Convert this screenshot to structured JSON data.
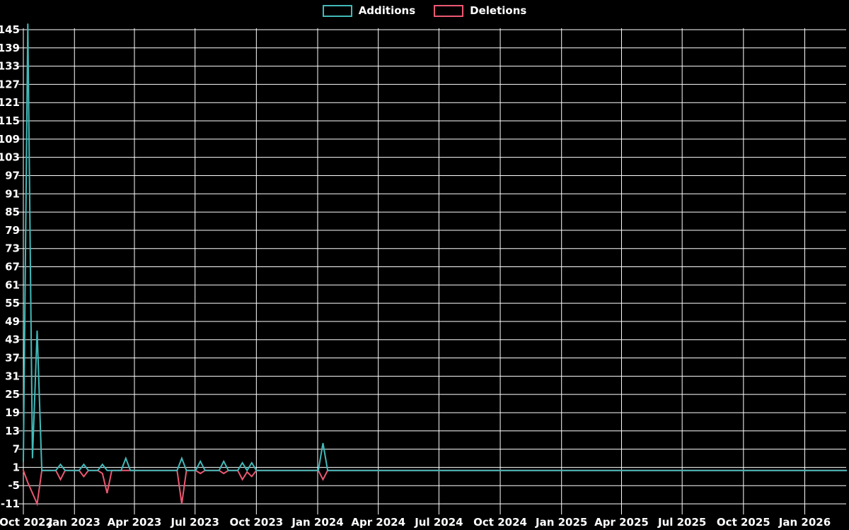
{
  "legend": {
    "items": [
      {
        "label": "Additions"
      },
      {
        "label": "Deletions"
      }
    ]
  },
  "chart_data": {
    "type": "line",
    "title": "",
    "legend_position": "top-center",
    "background_color": "#000000",
    "grid_color": "#ffffff",
    "text_color": "#ffffff",
    "grid": true,
    "x_axis": {
      "ticks": [
        {
          "label": "Oct 2022",
          "date": "2022-10-01"
        },
        {
          "label": "Jan 2023",
          "date": "2023-01-01"
        },
        {
          "label": "Apr 2023",
          "date": "2023-04-01"
        },
        {
          "label": "Jul 2023",
          "date": "2023-07-01"
        },
        {
          "label": "Oct 2023",
          "date": "2023-10-01"
        },
        {
          "label": "Jan 2024",
          "date": "2024-01-01"
        },
        {
          "label": "Apr 2024",
          "date": "2024-04-01"
        },
        {
          "label": "Jul 2024",
          "date": "2024-07-01"
        },
        {
          "label": "Oct 2024",
          "date": "2024-10-01"
        },
        {
          "label": "Jan 2025",
          "date": "2025-01-01"
        },
        {
          "label": "Apr 2025",
          "date": "2025-04-01"
        },
        {
          "label": "Jul 2025",
          "date": "2025-07-01"
        },
        {
          "label": "Oct 2025",
          "date": "2025-10-01"
        },
        {
          "label": "Jan 2026",
          "date": "2026-01-01"
        }
      ]
    },
    "y_axis": {
      "min": -11,
      "max": 145,
      "step": 6
    },
    "series": [
      {
        "name": "Additions",
        "color": "#42b9b9",
        "points": [
          [
            "2022-10-16",
            3
          ],
          [
            "2022-10-23",
            147
          ],
          [
            "2022-10-30",
            4
          ],
          [
            "2022-11-06",
            46
          ],
          [
            "2022-11-13",
            0
          ],
          [
            "2022-12-04",
            0
          ],
          [
            "2022-12-11",
            2
          ],
          [
            "2022-12-18",
            0
          ],
          [
            "2023-01-08",
            0
          ],
          [
            "2023-01-15",
            2
          ],
          [
            "2023-01-22",
            0
          ],
          [
            "2023-02-05",
            0
          ],
          [
            "2023-02-12",
            2
          ],
          [
            "2023-02-19",
            0
          ],
          [
            "2023-03-12",
            0
          ],
          [
            "2023-03-19",
            4
          ],
          [
            "2023-03-26",
            0
          ],
          [
            "2023-06-04",
            0
          ],
          [
            "2023-06-11",
            4
          ],
          [
            "2023-06-18",
            0
          ],
          [
            "2023-07-02",
            0
          ],
          [
            "2023-07-09",
            3
          ],
          [
            "2023-07-16",
            0
          ],
          [
            "2023-08-06",
            0
          ],
          [
            "2023-08-13",
            3
          ],
          [
            "2023-08-20",
            0
          ],
          [
            "2023-09-03",
            0
          ],
          [
            "2023-09-10",
            2.5
          ],
          [
            "2023-09-17",
            0
          ],
          [
            "2023-09-24",
            2.5
          ],
          [
            "2023-10-01",
            0
          ],
          [
            "2024-01-02",
            0
          ],
          [
            "2024-01-09",
            9
          ],
          [
            "2024-01-16",
            0
          ],
          [
            "2026-03-08",
            0
          ]
        ]
      },
      {
        "name": "Deletions",
        "color": "#ec5872",
        "points": [
          [
            "2022-10-16",
            0
          ],
          [
            "2022-10-23",
            -4
          ],
          [
            "2022-10-30",
            -7.5
          ],
          [
            "2022-11-06",
            -11
          ],
          [
            "2022-11-13",
            0
          ],
          [
            "2022-12-04",
            0
          ],
          [
            "2022-12-11",
            -3
          ],
          [
            "2022-12-18",
            0
          ],
          [
            "2023-01-08",
            0
          ],
          [
            "2023-01-15",
            -2
          ],
          [
            "2023-01-22",
            0
          ],
          [
            "2023-02-05",
            0
          ],
          [
            "2023-02-12",
            -1
          ],
          [
            "2023-02-19",
            -7.5
          ],
          [
            "2023-02-26",
            0
          ],
          [
            "2023-06-04",
            0
          ],
          [
            "2023-06-11",
            -11
          ],
          [
            "2023-06-18",
            0
          ],
          [
            "2023-07-02",
            0
          ],
          [
            "2023-07-09",
            -1
          ],
          [
            "2023-07-16",
            0
          ],
          [
            "2023-08-06",
            0
          ],
          [
            "2023-08-13",
            -1
          ],
          [
            "2023-08-20",
            0
          ],
          [
            "2023-09-03",
            0
          ],
          [
            "2023-09-10",
            -3
          ],
          [
            "2023-09-17",
            -0.5
          ],
          [
            "2023-09-24",
            -2
          ],
          [
            "2023-10-01",
            0
          ],
          [
            "2024-01-02",
            0
          ],
          [
            "2024-01-09",
            -3
          ],
          [
            "2024-01-16",
            0
          ],
          [
            "2026-03-08",
            0
          ]
        ]
      }
    ]
  }
}
